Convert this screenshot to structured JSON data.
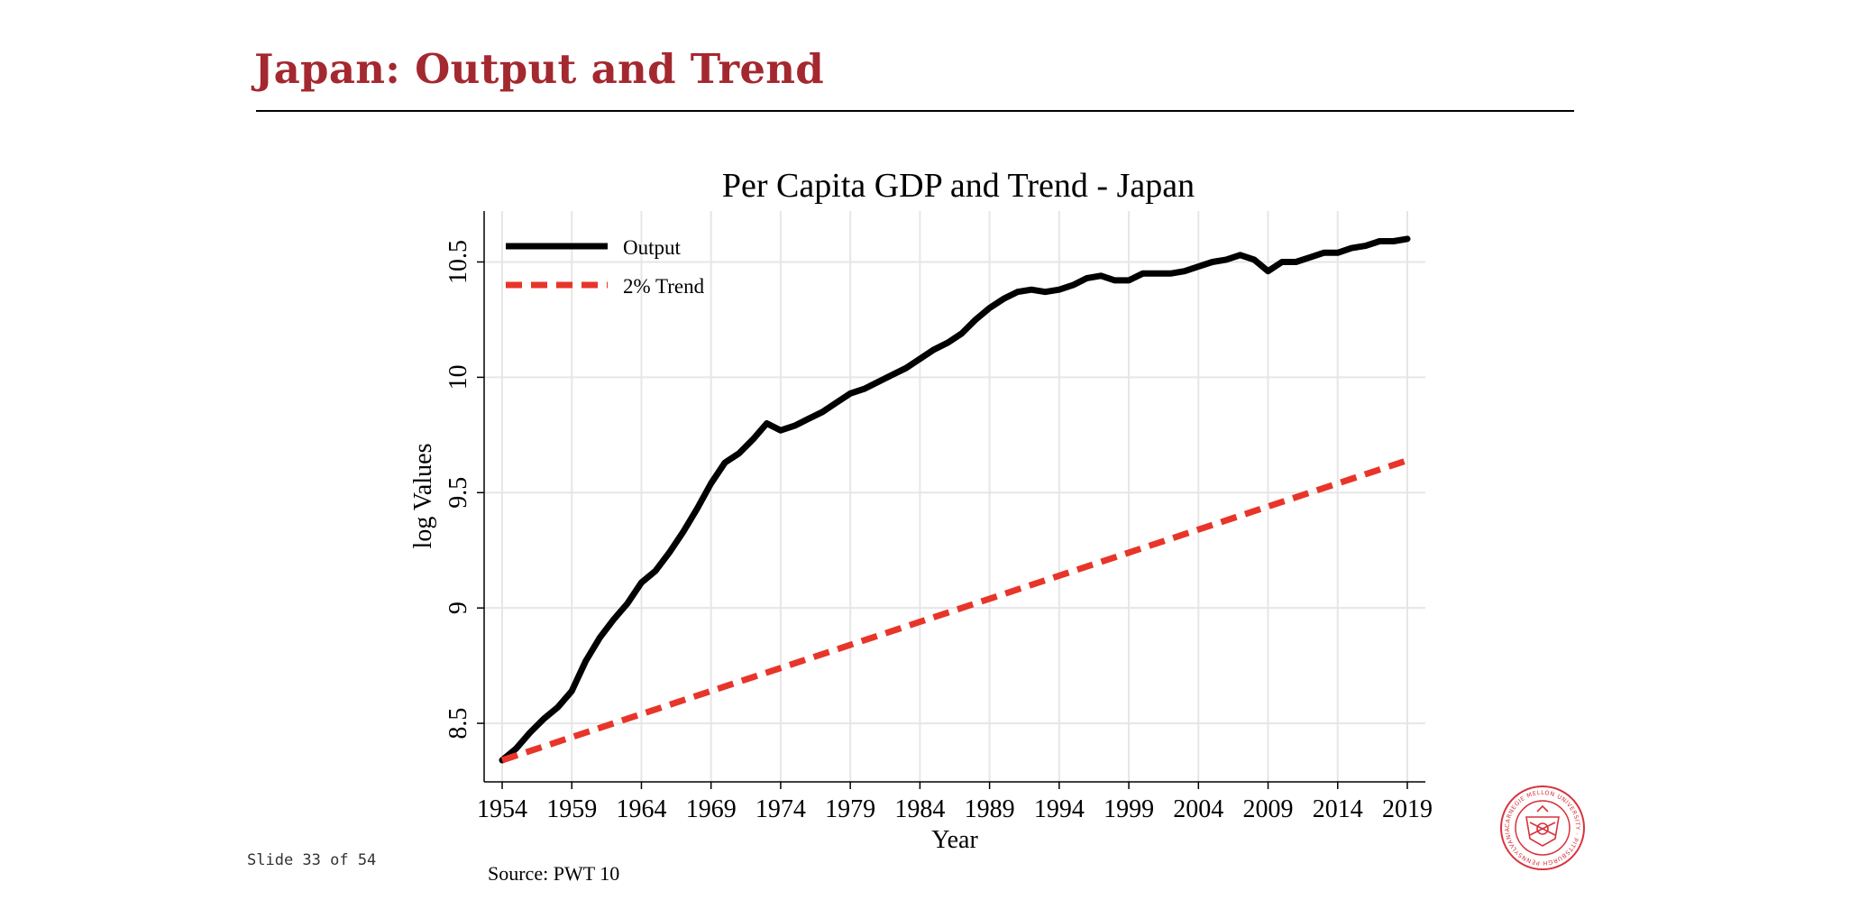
{
  "slide": {
    "title": "Japan: Output and Trend",
    "footer": "Slide 33 of 54",
    "source": "Source: PWT 10",
    "seal_text": "CARNEGIE MELLON UNIVERSITY · PITTSBURGH PENNSYLVANIA 1900"
  },
  "colors": {
    "title": "#a4282f",
    "output": "#000000",
    "trend": "#e8352a",
    "grid": "#e6e6e6",
    "seal": "#d9323c"
  },
  "chart_data": {
    "type": "line",
    "title": "Per Capita GDP and Trend - Japan",
    "xlabel": "Year",
    "ylabel": "log Values",
    "xlim": [
      1954,
      2019
    ],
    "ylim": [
      8.34,
      10.67
    ],
    "xticks": [
      1954,
      1959,
      1964,
      1969,
      1974,
      1979,
      1984,
      1989,
      1994,
      1999,
      2004,
      2009,
      2014,
      2019
    ],
    "xtick_labels": [
      "1954",
      "1959",
      "1964",
      "1969",
      "1974",
      "1979",
      "1984",
      "1989",
      "1994",
      "1999",
      "2004",
      "2009",
      "2014",
      "2019"
    ],
    "yticks": [
      8.5,
      9,
      9.5,
      10,
      10.5
    ],
    "ytick_labels": [
      "8.5",
      "9",
      "9.5",
      "10",
      "10.5"
    ],
    "grid": true,
    "legend_position": "top-left",
    "series": [
      {
        "name": "Output",
        "style": "solid",
        "color": "#000000",
        "x": [
          1954,
          1955,
          1956,
          1957,
          1958,
          1959,
          1960,
          1961,
          1962,
          1963,
          1964,
          1965,
          1966,
          1967,
          1968,
          1969,
          1970,
          1971,
          1972,
          1973,
          1974,
          1975,
          1976,
          1977,
          1978,
          1979,
          1980,
          1981,
          1982,
          1983,
          1984,
          1985,
          1986,
          1987,
          1988,
          1989,
          1990,
          1991,
          1992,
          1993,
          1994,
          1995,
          1996,
          1997,
          1998,
          1999,
          2000,
          2001,
          2002,
          2003,
          2004,
          2005,
          2006,
          2007,
          2008,
          2009,
          2010,
          2011,
          2012,
          2013,
          2014,
          2015,
          2016,
          2017,
          2018,
          2019
        ],
        "y": [
          8.34,
          8.39,
          8.46,
          8.52,
          8.57,
          8.64,
          8.77,
          8.87,
          8.95,
          9.02,
          9.11,
          9.16,
          9.24,
          9.33,
          9.43,
          9.54,
          9.63,
          9.67,
          9.73,
          9.8,
          9.77,
          9.79,
          9.82,
          9.85,
          9.89,
          9.93,
          9.95,
          9.98,
          10.01,
          10.04,
          10.08,
          10.12,
          10.15,
          10.19,
          10.25,
          10.3,
          10.34,
          10.37,
          10.38,
          10.37,
          10.38,
          10.4,
          10.43,
          10.44,
          10.42,
          10.42,
          10.45,
          10.45,
          10.45,
          10.46,
          10.48,
          10.5,
          10.51,
          10.53,
          10.51,
          10.46,
          10.5,
          10.5,
          10.52,
          10.54,
          10.54,
          10.56,
          10.57,
          10.59,
          10.59,
          10.6
        ]
      },
      {
        "name": "2% Trend",
        "style": "dashed",
        "color": "#e8352a",
        "x": [
          1954,
          2019
        ],
        "y": [
          8.34,
          9.64
        ]
      }
    ]
  }
}
